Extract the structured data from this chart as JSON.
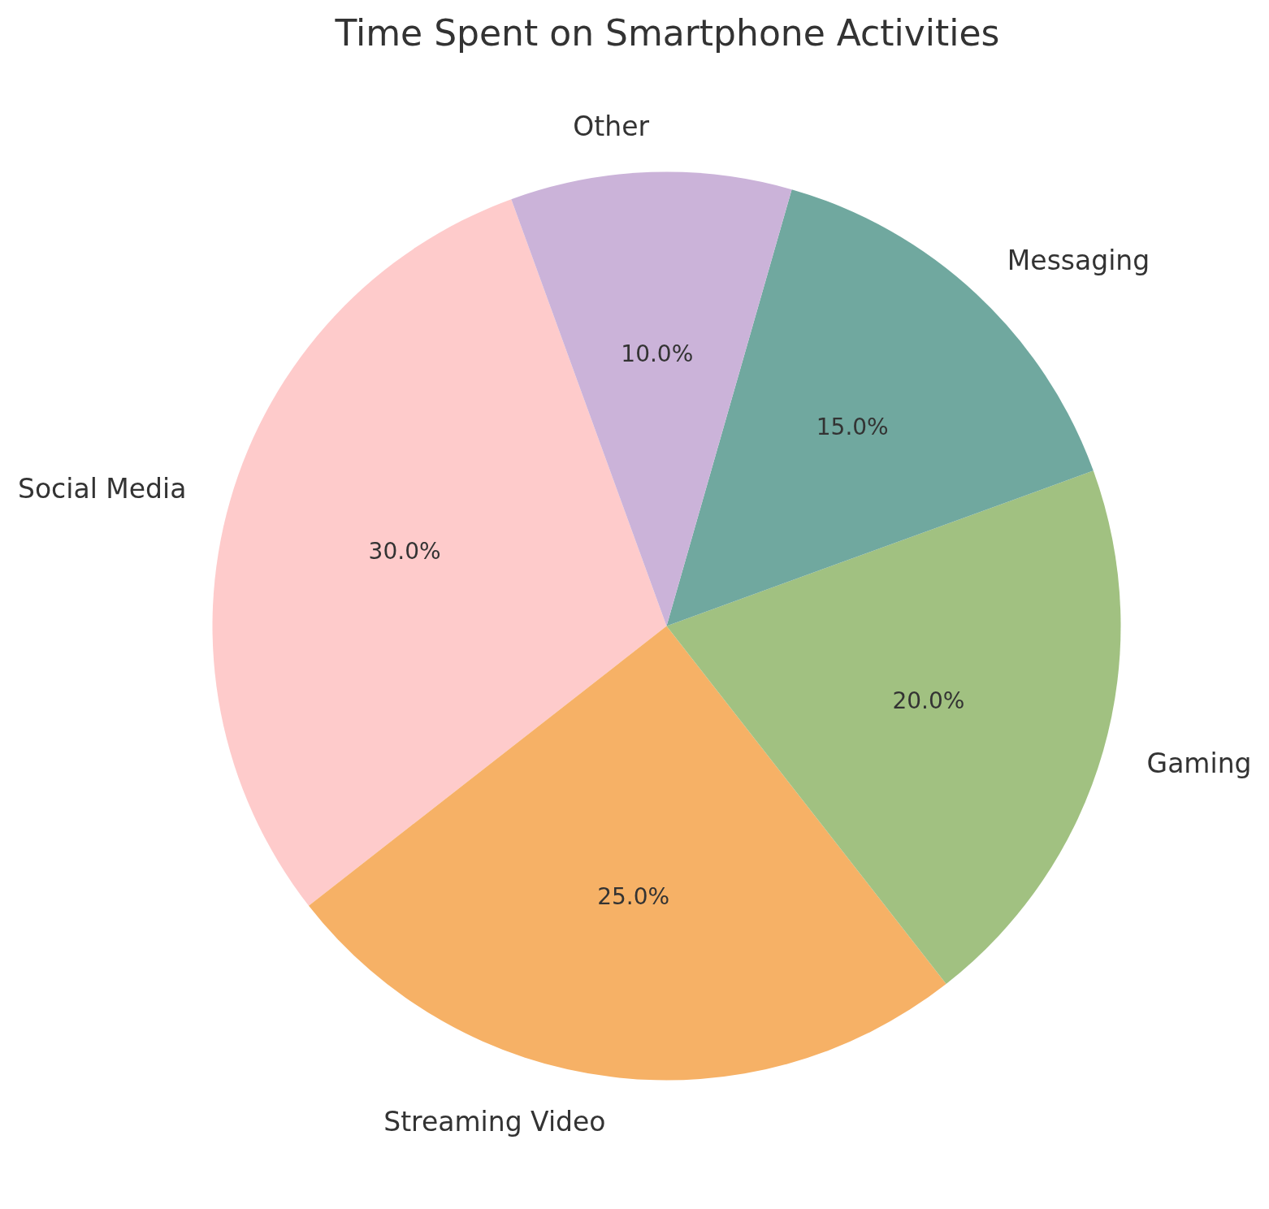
{
  "chart_data": {
    "type": "pie",
    "title": "Time Spent on Smartphone Activities",
    "categories": [
      "Social Media",
      "Streaming Video",
      "Gaming",
      "Messaging",
      "Other"
    ],
    "values": [
      30,
      25,
      20,
      15,
      10
    ],
    "colors": [
      "#fecbcb",
      "#f6b166",
      "#a1c181",
      "#70a89f",
      "#cbb3d9"
    ],
    "value_labels": [
      "30.0%",
      "25.0%",
      "20.0%",
      "15.0%",
      "10.0%"
    ]
  }
}
